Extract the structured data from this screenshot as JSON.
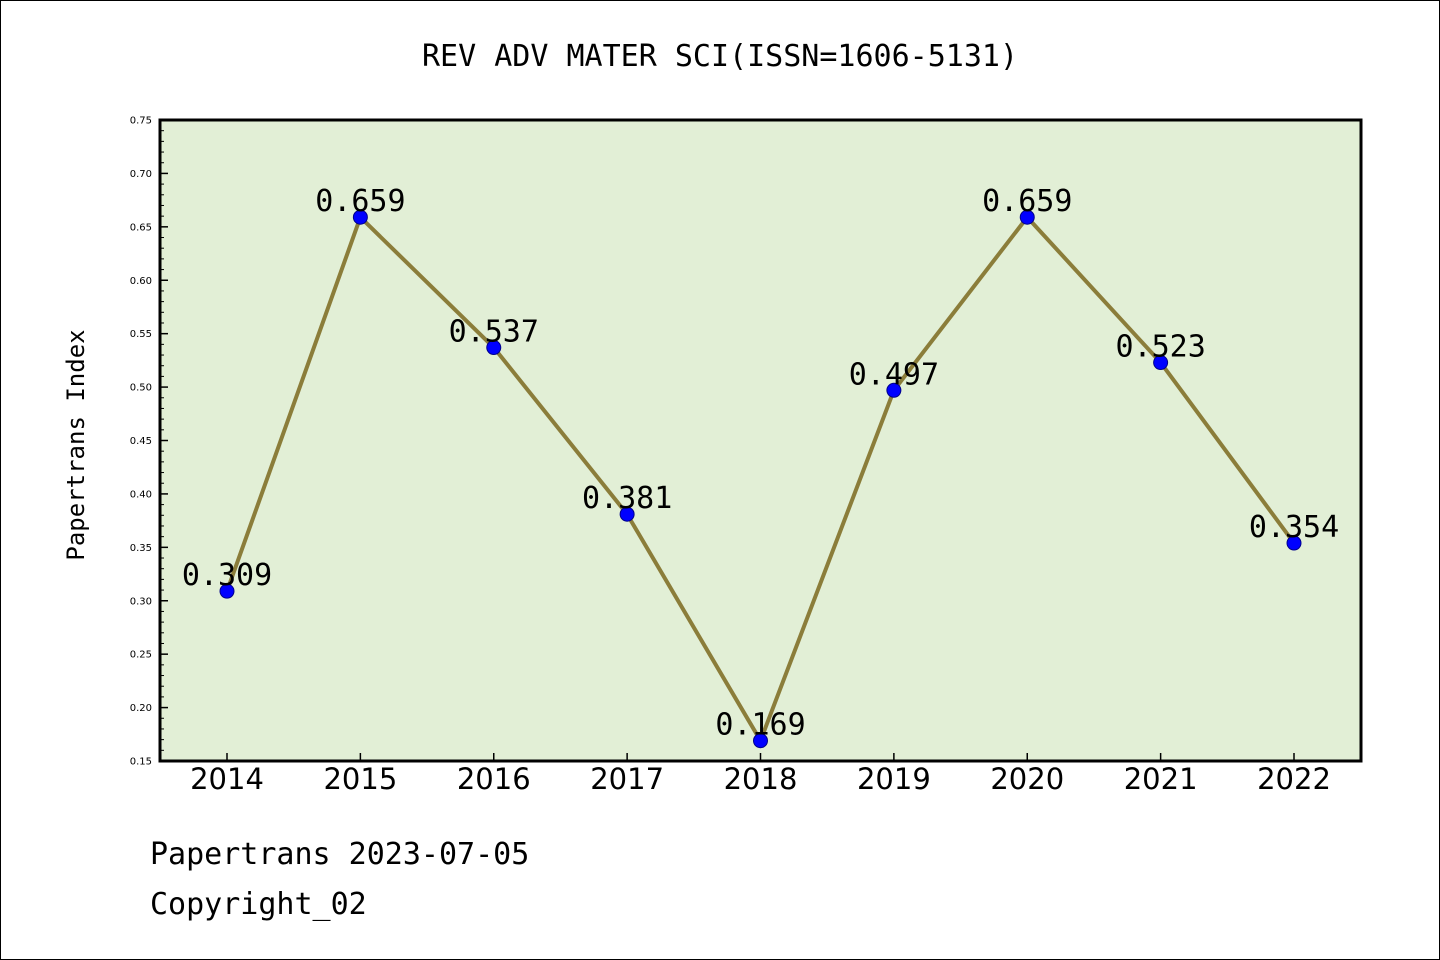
{
  "chart_data": {
    "type": "line",
    "title": "REV ADV MATER SCI(ISSN=1606-5131)",
    "xlabel": "",
    "ylabel": "Papertrans Index",
    "categories": [
      "2014",
      "2015",
      "2016",
      "2017",
      "2018",
      "2019",
      "2020",
      "2021",
      "2022"
    ],
    "values": [
      0.309,
      0.659,
      0.537,
      0.381,
      0.169,
      0.497,
      0.659,
      0.523,
      0.354
    ],
    "data_labels": [
      "0.309",
      "0.659",
      "0.537",
      "0.381",
      "0.169",
      "0.497",
      "0.659",
      "0.523",
      "0.354"
    ],
    "ylim": [
      0.15,
      0.75
    ],
    "yticks": [
      "0.15",
      "0.20",
      "0.25",
      "0.30",
      "0.35",
      "0.40",
      "0.45",
      "0.50",
      "0.55",
      "0.60",
      "0.65",
      "0.70",
      "0.75"
    ],
    "grid": false,
    "colors": {
      "plot_background": "#e2efd6",
      "line": "#8b7d3a",
      "marker": "#0000ff"
    }
  },
  "footer": {
    "line1": "Papertrans 2023-07-05",
    "line2": "Copyright_02"
  }
}
